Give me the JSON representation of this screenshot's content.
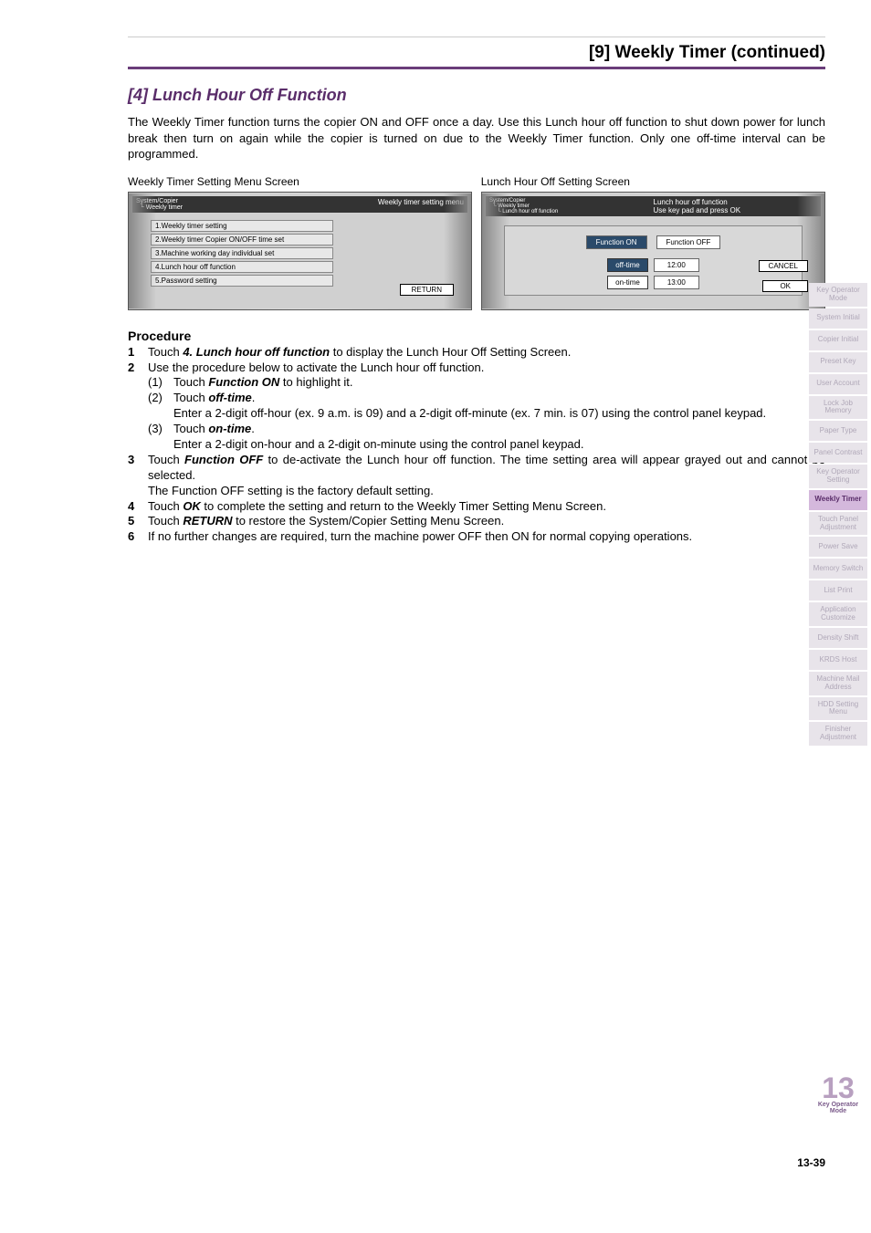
{
  "section_title": "[9] Weekly Timer (continued)",
  "subsection": "[4] Lunch Hour Off Function",
  "intro": "The Weekly Timer function turns the copier ON and OFF once a day. Use this Lunch hour off function to shut down power for lunch break then turn on again while the copier is turned on due to the Weekly Timer function. Only one off-time interval can be programmed.",
  "screen_left_label": "Weekly Timer Setting Menu Screen",
  "screen_right_label": "Lunch Hour Off Setting Screen",
  "left_screen": {
    "crumb": "System/Copier\n  └ Weekly timer",
    "title": "Weekly timer setting menu",
    "items": [
      "1.Weekly timer setting",
      "2.Weekly timer Copier ON/OFF time set",
      "3.Machine working day individual set",
      "4.Lunch hour off function",
      "5.Password setting"
    ],
    "return": "RETURN"
  },
  "right_screen": {
    "crumb": "System/Copier\n  └ Weekly timer\n     └ Lunch hour off function",
    "title1": "Lunch hour off function",
    "title2": "Use key pad and press OK",
    "func_on": "Function ON",
    "func_off": "Function OFF",
    "off_label": "off-time",
    "off_val": "12:00",
    "on_label": "on-time",
    "on_val": "13:00",
    "cancel": "CANCEL",
    "ok": "OK"
  },
  "procedure_title": "Procedure",
  "steps": {
    "s1_pre": "Touch ",
    "s1_bold": "4. Lunch hour off function",
    "s1_post": " to display the Lunch Hour Off Setting Screen.",
    "s2": "Use the procedure below to activate the Lunch hour off function.",
    "s2_1_pre": "Touch ",
    "s2_1_bold": "Function ON",
    "s2_1_post": " to highlight it.",
    "s2_2_pre": "Touch ",
    "s2_2_bold": "off-time",
    "s2_2_post": ".",
    "s2_2b": "Enter a 2-digit off-hour (ex. 9 a.m. is 09) and a 2-digit off-minute (ex. 7 min. is 07) using the control panel keypad.",
    "s2_3_pre": "Touch ",
    "s2_3_bold": "on-time",
    "s2_3_post": ".",
    "s2_3b": "Enter a 2-digit on-hour and a 2-digit on-minute using the control panel keypad.",
    "s3_pre": "Touch ",
    "s3_bold": "Function OFF",
    "s3_post": " to de-activate the Lunch hour off function. The time setting area will appear grayed out and cannot be selected.",
    "s3b": "The Function OFF setting is the factory default setting.",
    "s4_pre": "Touch ",
    "s4_bold": "OK",
    "s4_post": " to complete the setting and return to the Weekly Timer Setting Menu Screen.",
    "s5_pre": "Touch ",
    "s5_bold": "RETURN",
    "s5_post": " to restore the System/Copier Setting Menu Screen.",
    "s6": "If no further changes are required, turn the machine power OFF then ON for normal copying operations."
  },
  "sidebar": [
    "Key Operator Mode",
    "System Initial",
    "Copier Initial",
    "Preset Key",
    "User Account",
    "Lock Job Memory",
    "Paper Type",
    "Panel Contrast",
    "Key Operator Setting",
    "Weekly Timer",
    "Touch Panel Adjustment",
    "Power Save",
    "Memory Switch",
    "List Print",
    "Application Customize",
    "Density Shift",
    "KRDS Host",
    "Machine Mail Address",
    "HDD Setting Menu",
    "Finisher Adjustment"
  ],
  "sidebar_active_index": 9,
  "corner_num": "13",
  "corner_label1": "Key Operator",
  "corner_label2": "Mode",
  "page_number": "13-39"
}
